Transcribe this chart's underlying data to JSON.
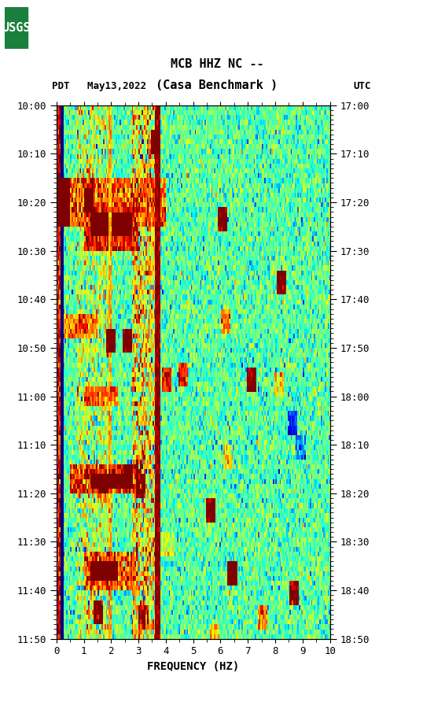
{
  "title_line1": "MCB HHZ NC --",
  "title_line2": "(Casa Benchmark )",
  "left_label": "PDT   May13,2022",
  "right_label": "UTC",
  "xlabel": "FREQUENCY (HZ)",
  "freq_min": 0,
  "freq_max": 10,
  "time_start_label": "10:00",
  "time_end_label": "11:50",
  "right_time_start": "17:00",
  "right_time_end": "18:50",
  "ytick_left": [
    "10:00",
    "10:10",
    "10:20",
    "10:30",
    "10:40",
    "10:50",
    "11:00",
    "11:10",
    "11:20",
    "11:30",
    "11:40",
    "11:50"
  ],
  "ytick_right": [
    "17:00",
    "17:10",
    "17:20",
    "17:30",
    "17:40",
    "17:50",
    "18:00",
    "18:10",
    "18:20",
    "18:30",
    "18:40",
    "18:50"
  ],
  "xticks": [
    0,
    1,
    2,
    3,
    4,
    5,
    6,
    7,
    8,
    9,
    10
  ],
  "bg_color": "#ffffff",
  "usgs_green": "#1a7f3c",
  "spectrogram_cmap": "jet",
  "seed": 42,
  "n_time": 110,
  "n_freq": 200,
  "figsize": [
    5.52,
    8.92
  ],
  "dpi": 100
}
